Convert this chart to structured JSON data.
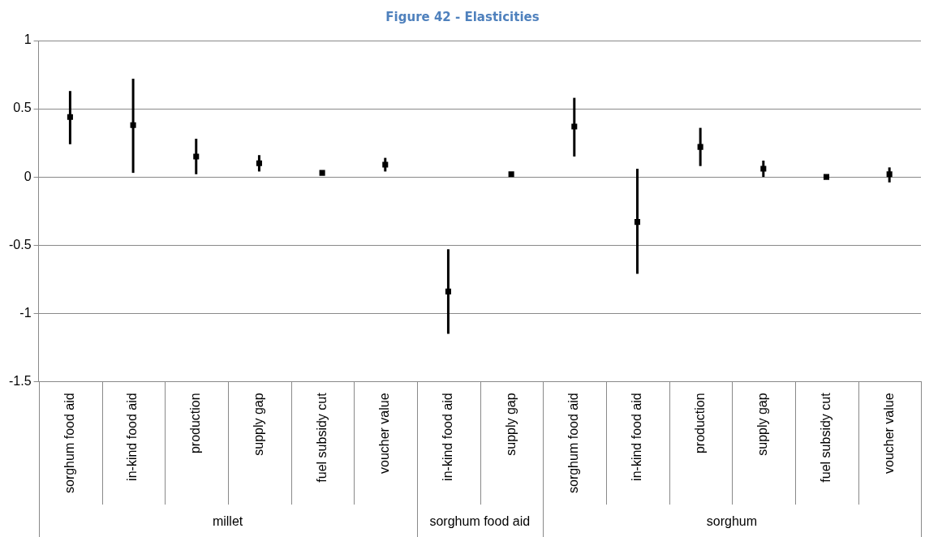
{
  "chart_data": {
    "type": "scatter",
    "title": "Figure 42 - Elasticities",
    "categories": [
      "sorghum food aid",
      "in-kind food aid",
      "production",
      "supply gap",
      "fuel subsidy cut",
      "voucher value",
      "in-kind food aid",
      "supply gap",
      "sorghum food aid",
      "in-kind food aid",
      "production",
      "supply gap",
      "fuel subsidy cut",
      "voucher value"
    ],
    "series": [
      {
        "color": "#000000",
        "values": [
          0.44,
          0.38,
          0.15,
          0.1,
          0.03,
          0.09,
          -0.84,
          0.02,
          0.37,
          -0.33,
          0.22,
          0.06,
          0.0,
          0.02
        ],
        "errors": [
          [
            0.24,
            0.63
          ],
          [
            0.03,
            0.72
          ],
          [
            0.02,
            0.28
          ],
          [
            0.04,
            0.16
          ],
          [
            0.02,
            0.04
          ],
          [
            0.04,
            0.14
          ],
          [
            -1.15,
            -0.53
          ],
          [
            0.01,
            0.03
          ],
          [
            0.15,
            0.58
          ],
          [
            -0.71,
            0.06
          ],
          [
            0.08,
            0.36
          ],
          [
            0.0,
            0.12
          ],
          [
            -0.01,
            0.01
          ],
          [
            -0.04,
            0.07
          ]
        ]
      }
    ],
    "annotations": [
      "millet",
      "sorghum food aid",
      "sorghum"
    ],
    "ylim": [
      -1.5,
      1
    ],
    "yticks": [
      -1.5,
      -1,
      -0.5,
      0,
      0.5,
      1
    ],
    "grid": "y",
    "legend": false
  }
}
